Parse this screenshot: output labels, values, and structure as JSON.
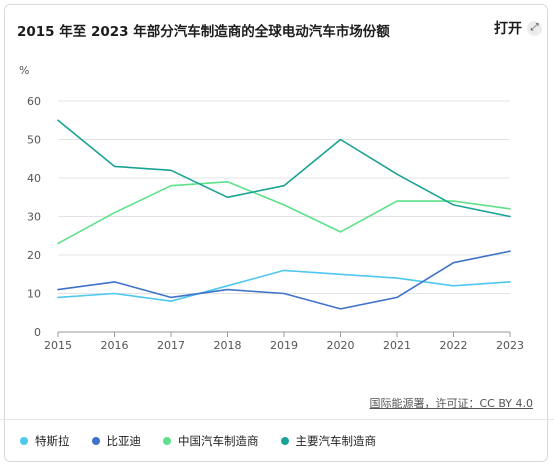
{
  "header": {
    "title": "2015 年至 2023 年部分汽车制造商的全球电动汽车市场份额",
    "open_label": "打开",
    "expand_icon": "expand-arrows-icon"
  },
  "footer": {
    "source": "国际能源署，许可证：CC BY 4.0"
  },
  "chart_data": {
    "type": "line",
    "ylabel": "%",
    "xlabel": "",
    "x": [
      "2015",
      "2016",
      "2017",
      "2018",
      "2019",
      "2020",
      "2021",
      "2022",
      "2023"
    ],
    "yticks": [
      "0",
      "10",
      "20",
      "30",
      "40",
      "50",
      "60"
    ],
    "ylim": [
      0,
      60
    ],
    "grid": true,
    "legend_position": "bottom",
    "series": [
      {
        "name": "特斯拉",
        "color": "#4fc8f0",
        "values": [
          9,
          10,
          8,
          12,
          16,
          15,
          14,
          12,
          13
        ]
      },
      {
        "name": "比亚迪",
        "color": "#3f72c9",
        "values": [
          11,
          13,
          9,
          11,
          10,
          6,
          9,
          18,
          21
        ]
      },
      {
        "name": "中国汽车制造商",
        "color": "#5fe08a",
        "values": [
          23,
          31,
          38,
          39,
          33,
          26,
          34,
          34,
          32
        ]
      },
      {
        "name": "主要汽车制造商",
        "color": "#1aa394",
        "values": [
          55,
          43,
          42,
          35,
          38,
          50,
          41,
          33,
          30
        ]
      }
    ]
  }
}
